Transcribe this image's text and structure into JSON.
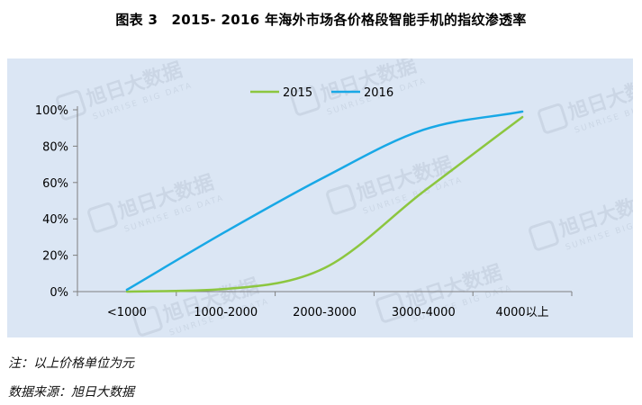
{
  "figure": {
    "title": "图表 3　2015- 2016 年海外市场各价格段智能手机的指纹渗透率"
  },
  "notes": {
    "note": "注：以上价格单位为元",
    "source": "数据来源：旭日大数据"
  },
  "watermark": {
    "brand": "旭日大数据",
    "brand_en": "SUNRISE BIG DATA"
  },
  "colors": {
    "plot_background": "#dbe6f4",
    "series_2015": "#8cc63f",
    "series_2016": "#18a8e6",
    "axis": "#7f7f7f"
  },
  "chart_data": {
    "type": "line",
    "categories": [
      "<1000",
      "1000-2000",
      "2000-3000",
      "3000-4000",
      "4000以上"
    ],
    "series": [
      {
        "name": "2015",
        "color": "#8cc63f",
        "values": [
          0,
          1.5,
          13,
          55,
          96
        ]
      },
      {
        "name": "2016",
        "color": "#18a8e6",
        "values": [
          1,
          33,
          63,
          89,
          99
        ]
      }
    ],
    "y_ticks": [
      "0%",
      "20%",
      "40%",
      "60%",
      "80%",
      "100%"
    ],
    "ylim": [
      0,
      100
    ],
    "y_unit": "%",
    "smooth": true,
    "grid": false,
    "legend_position": "top-center",
    "xlabel": "",
    "ylabel": ""
  }
}
